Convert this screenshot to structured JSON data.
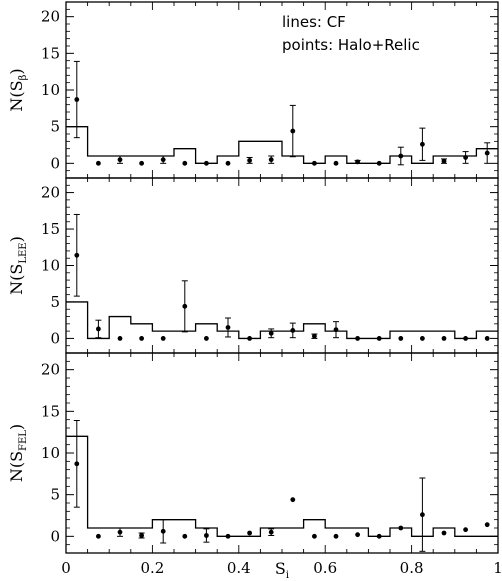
{
  "annotations": {
    "lines": "lines: CF",
    "points": "points: Halo+Relic"
  },
  "chart_data": [
    {
      "type": "step+scatter",
      "ylabel_main": "N(S",
      "ylabel_sub": "β",
      "ylabel_close": ")",
      "ylim": [
        -2,
        22
      ],
      "yticks": [
        0,
        5,
        10,
        15,
        20
      ],
      "xlim": [
        0,
        1
      ],
      "series": [
        {
          "name": "CF",
          "style": "step",
          "bin_edges": [
            0,
            0.05,
            0.1,
            0.15,
            0.2,
            0.25,
            0.3,
            0.35,
            0.4,
            0.45,
            0.5,
            0.55,
            0.6,
            0.65,
            0.7,
            0.75,
            0.8,
            0.85,
            0.9,
            0.95,
            1.0
          ],
          "values": [
            5,
            1,
            1,
            1,
            1,
            2,
            0,
            1,
            3,
            3,
            1,
            0,
            1,
            0,
            0,
            1,
            0,
            1,
            1,
            2
          ]
        },
        {
          "name": "Halo+Relic",
          "style": "points",
          "x": [
            0.025,
            0.075,
            0.125,
            0.175,
            0.225,
            0.275,
            0.325,
            0.375,
            0.425,
            0.475,
            0.525,
            0.575,
            0.625,
            0.675,
            0.725,
            0.775,
            0.825,
            0.875,
            0.925,
            0.975
          ],
          "y": [
            8.7,
            0.0,
            0.5,
            0.0,
            0.5,
            0.0,
            0.0,
            0.0,
            0.4,
            0.5,
            4.4,
            0.0,
            0.0,
            0.2,
            0.0,
            1.0,
            2.6,
            0.3,
            0.8,
            1.4
          ],
          "err": [
            5.2,
            0.0,
            0.5,
            0.0,
            0.5,
            0.0,
            0.0,
            0.0,
            0.4,
            0.5,
            3.5,
            0.0,
            0.0,
            0.2,
            0.0,
            1.2,
            2.2,
            0.3,
            0.8,
            1.4
          ]
        }
      ]
    },
    {
      "type": "step+scatter",
      "ylabel_main": "N(S",
      "ylabel_sub": "LEE",
      "ylabel_close": ")",
      "ylim": [
        -2,
        22
      ],
      "yticks": [
        0,
        5,
        10,
        15,
        20
      ],
      "xlim": [
        0,
        1
      ],
      "series": [
        {
          "name": "CF",
          "style": "step",
          "bin_edges": [
            0,
            0.05,
            0.1,
            0.15,
            0.2,
            0.25,
            0.3,
            0.35,
            0.4,
            0.45,
            0.5,
            0.55,
            0.6,
            0.65,
            0.7,
            0.75,
            0.8,
            0.85,
            0.9,
            0.95,
            1.0
          ],
          "values": [
            5,
            0,
            3,
            2,
            1,
            1,
            2,
            1,
            0,
            1,
            1,
            2,
            1,
            0,
            0,
            1,
            1,
            1,
            0,
            1
          ]
        },
        {
          "name": "Halo+Relic",
          "style": "points",
          "x": [
            0.025,
            0.075,
            0.125,
            0.175,
            0.225,
            0.275,
            0.325,
            0.375,
            0.425,
            0.475,
            0.525,
            0.575,
            0.625,
            0.675,
            0.725,
            0.775,
            0.825,
            0.875,
            0.925,
            0.975
          ],
          "y": [
            11.4,
            1.3,
            0.0,
            0.0,
            0.0,
            4.4,
            0.0,
            1.5,
            0.0,
            0.7,
            1.1,
            0.3,
            1.2,
            0.0,
            0.0,
            0.0,
            0.0,
            0.0,
            0.0,
            0.0
          ],
          "err": [
            5.6,
            1.2,
            0.0,
            0.0,
            0.0,
            3.5,
            0.0,
            1.3,
            0.0,
            0.6,
            1.0,
            0.3,
            1.1,
            0.0,
            0.0,
            0.0,
            0.0,
            0.0,
            0.0,
            0.0
          ]
        }
      ]
    },
    {
      "type": "step+scatter",
      "ylabel_main": "N(S",
      "ylabel_sub": "FEL",
      "ylabel_close": ")",
      "ylim": [
        -2,
        22
      ],
      "yticks": [
        0,
        5,
        10,
        15,
        20
      ],
      "xlim": [
        0,
        1
      ],
      "xticks": [
        0,
        0.2,
        0.4,
        0.6,
        0.8,
        1
      ],
      "xtick_labels": [
        "0",
        "0.2",
        "0.4",
        "0.6",
        "0.8",
        "1"
      ],
      "xlabel_main": "S",
      "xlabel_sub": "i",
      "series": [
        {
          "name": "CF",
          "style": "step",
          "bin_edges": [
            0,
            0.05,
            0.1,
            0.15,
            0.2,
            0.25,
            0.3,
            0.35,
            0.4,
            0.45,
            0.5,
            0.55,
            0.6,
            0.65,
            0.7,
            0.75,
            0.8,
            0.85,
            0.9,
            0.95,
            1.0
          ],
          "values": [
            12,
            1,
            1,
            1,
            2,
            2,
            1,
            0,
            0,
            1,
            1,
            2,
            1,
            1,
            0,
            1,
            0,
            1,
            0,
            0
          ]
        },
        {
          "name": "Halo+Relic",
          "style": "points",
          "x": [
            0.025,
            0.075,
            0.125,
            0.175,
            0.225,
            0.275,
            0.325,
            0.375,
            0.425,
            0.475,
            0.525,
            0.575,
            0.625,
            0.675,
            0.725,
            0.775,
            0.825,
            0.875,
            0.925,
            0.975
          ],
          "y": [
            8.7,
            0.0,
            0.5,
            0.1,
            0.6,
            0.0,
            0.1,
            0.0,
            0.4,
            0.5,
            4.4,
            0.0,
            0.0,
            0.2,
            0.0,
            1.0,
            2.6,
            0.4,
            0.8,
            1.4
          ],
          "err": [
            5.2,
            0.0,
            0.5,
            0.3,
            1.4,
            0.0,
            0.8,
            0.0,
            0.0,
            0.4,
            0.0,
            0.0,
            0.0,
            0.0,
            0.0,
            0.0,
            4.4,
            0.0,
            0.0,
            0.0
          ]
        }
      ]
    }
  ]
}
